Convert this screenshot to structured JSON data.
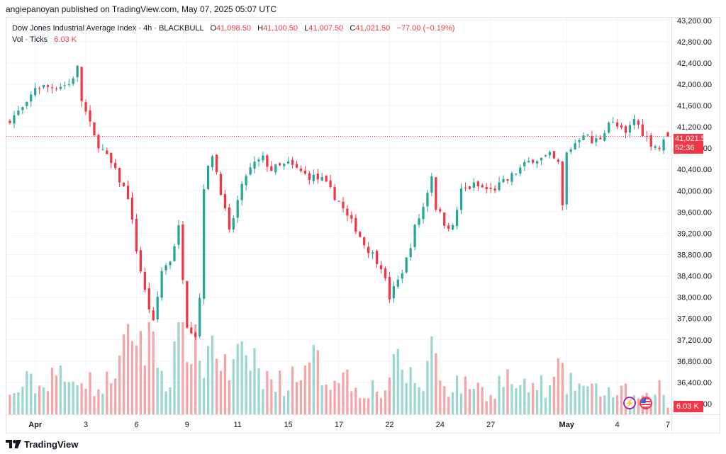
{
  "header": "angiepanoyan published on TradingView.com, May 07, 2025 05:07 UTC",
  "legend": {
    "symbol": "Dow Jones Industrial Average Index · 4h · BLACKBULL",
    "open_key": "O",
    "open": "41,098.50",
    "high_key": "H",
    "high": "41,100.50",
    "low_key": "L",
    "low": "41,007.50",
    "close_key": "C",
    "close": "41,021.50",
    "change": "−77.00 (−0.19%)",
    "vol_label": "Vol · Ticks",
    "vol_value": "6.03 K"
  },
  "price_tag": {
    "price": "41,021.50",
    "countdown": "52:36"
  },
  "volume_tag": "6.03 K",
  "footer": {
    "brand": "TradingView",
    "logo_icon": "tradingview-logo-icon"
  },
  "badges": [
    {
      "icon": "lightning-bolt-icon"
    },
    {
      "icon": "us-flag-icon"
    }
  ],
  "colors": {
    "up": "#26a69a",
    "down": "#f23645",
    "vol_up": "#9bd6cf",
    "vol_down": "#f5a5a8",
    "grid": "#f0f3fa"
  },
  "chart_data": {
    "type": "candlestick",
    "title": "Dow Jones Industrial Average Index · 4h · BLACKBULL",
    "ylim": [
      35800,
      43250
    ],
    "y_ticks": [
      "43,200.00",
      "42,800.00",
      "42,400.00",
      "42,000.00",
      "41,600.00",
      "41,200.00",
      "40,800.00",
      "40,400.00",
      "40,000.00",
      "39,600.00",
      "39,200.00",
      "38,800.00",
      "38,400.00",
      "38,000.00",
      "37,600.00",
      "37,200.00",
      "36,800.00",
      "36,400.00",
      "36,000.00"
    ],
    "y_tick_values": [
      43200,
      42800,
      42400,
      42000,
      41600,
      41200,
      40800,
      40400,
      40000,
      39600,
      39200,
      38800,
      38400,
      38000,
      37600,
      37200,
      36800,
      36400,
      36000
    ],
    "x_ticks": [
      {
        "label": "Apr",
        "bar": 6,
        "bold": true
      },
      {
        "label": "3",
        "bar": 18
      },
      {
        "label": "6",
        "bar": 30
      },
      {
        "label": "9",
        "bar": 42
      },
      {
        "label": "11",
        "bar": 54
      },
      {
        "label": "15",
        "bar": 66
      },
      {
        "label": "17",
        "bar": 78
      },
      {
        "label": "22",
        "bar": 90
      },
      {
        "label": "24",
        "bar": 102
      },
      {
        "label": "27",
        "bar": 114
      },
      {
        "label": "May",
        "bar": 132,
        "bold": true
      },
      {
        "label": "4",
        "bar": 144
      },
      {
        "label": "7",
        "bar": 156
      }
    ],
    "last_price": 41021.5,
    "close_path": [
      [
        0,
        41350
      ],
      [
        4,
        41600
      ],
      [
        6,
        41950
      ],
      [
        10,
        41950
      ],
      [
        14,
        42000
      ],
      [
        16,
        42300
      ],
      [
        17,
        41700
      ],
      [
        20,
        41000
      ],
      [
        24,
        40500
      ],
      [
        28,
        39900
      ],
      [
        30,
        38900
      ],
      [
        32,
        38100
      ],
      [
        34,
        37500
      ],
      [
        36,
        38500
      ],
      [
        38,
        38700
      ],
      [
        40,
        39300
      ],
      [
        42,
        37500
      ],
      [
        44,
        37300
      ],
      [
        45,
        38000
      ],
      [
        46,
        40100
      ],
      [
        48,
        40700
      ],
      [
        50,
        40000
      ],
      [
        52,
        39200
      ],
      [
        54,
        39800
      ],
      [
        56,
        40300
      ],
      [
        58,
        40500
      ],
      [
        60,
        40600
      ],
      [
        62,
        40400
      ],
      [
        66,
        40500
      ],
      [
        70,
        40300
      ],
      [
        74,
        40200
      ],
      [
        76,
        40000
      ],
      [
        78,
        39800
      ],
      [
        80,
        39500
      ],
      [
        82,
        39300
      ],
      [
        84,
        39000
      ],
      [
        86,
        38800
      ],
      [
        88,
        38600
      ],
      [
        90,
        38000
      ],
      [
        92,
        38300
      ],
      [
        94,
        38700
      ],
      [
        96,
        39300
      ],
      [
        98,
        39700
      ],
      [
        100,
        40300
      ],
      [
        101,
        39700
      ],
      [
        103,
        39400
      ],
      [
        105,
        39300
      ],
      [
        107,
        40000
      ],
      [
        110,
        40100
      ],
      [
        114,
        40000
      ],
      [
        118,
        40200
      ],
      [
        120,
        40350
      ],
      [
        124,
        40600
      ],
      [
        126,
        40600
      ],
      [
        128,
        40650
      ],
      [
        130,
        40500
      ],
      [
        131,
        39700
      ],
      [
        132,
        40700
      ],
      [
        134,
        40900
      ],
      [
        136,
        41100
      ],
      [
        138,
        40900
      ],
      [
        140,
        41000
      ],
      [
        142,
        41300
      ],
      [
        144,
        41200
      ],
      [
        146,
        41050
      ],
      [
        148,
        41350
      ],
      [
        150,
        41100
      ],
      [
        152,
        40900
      ],
      [
        154,
        40800
      ],
      [
        156,
        41021.5
      ]
    ],
    "volume_path": [
      [
        0,
        0.18
      ],
      [
        4,
        0.35
      ],
      [
        8,
        0.28
      ],
      [
        10,
        0.5
      ],
      [
        14,
        0.3
      ],
      [
        16,
        0.48
      ],
      [
        20,
        0.3
      ],
      [
        22,
        0.25
      ],
      [
        24,
        0.45
      ],
      [
        26,
        0.55
      ],
      [
        28,
        0.75
      ],
      [
        30,
        0.95
      ],
      [
        32,
        0.7
      ],
      [
        34,
        0.9
      ],
      [
        36,
        0.45
      ],
      [
        38,
        0.35
      ],
      [
        40,
        0.95
      ],
      [
        42,
        0.85
      ],
      [
        44,
        0.7
      ],
      [
        46,
        0.55
      ],
      [
        48,
        0.82
      ],
      [
        50,
        0.6
      ],
      [
        52,
        0.42
      ],
      [
        54,
        0.6
      ],
      [
        56,
        0.55
      ],
      [
        58,
        0.65
      ],
      [
        60,
        0.3
      ],
      [
        62,
        0.45
      ],
      [
        64,
        0.35
      ],
      [
        66,
        0.3
      ],
      [
        68,
        0.55
      ],
      [
        70,
        0.4
      ],
      [
        72,
        0.6
      ],
      [
        74,
        0.45
      ],
      [
        76,
        0.35
      ],
      [
        78,
        0.5
      ],
      [
        80,
        0.4
      ],
      [
        82,
        0.28
      ],
      [
        84,
        0.25
      ],
      [
        86,
        0.3
      ],
      [
        88,
        0.22
      ],
      [
        90,
        0.4
      ],
      [
        92,
        0.55
      ],
      [
        94,
        0.45
      ],
      [
        96,
        0.35
      ],
      [
        98,
        0.3
      ],
      [
        100,
        0.8
      ],
      [
        102,
        0.4
      ],
      [
        104,
        0.28
      ],
      [
        106,
        0.35
      ],
      [
        108,
        0.3
      ],
      [
        110,
        0.35
      ],
      [
        112,
        0.25
      ],
      [
        114,
        0.2
      ],
      [
        116,
        0.35
      ],
      [
        118,
        0.4
      ],
      [
        120,
        0.3
      ],
      [
        122,
        0.28
      ],
      [
        124,
        0.3
      ],
      [
        126,
        0.32
      ],
      [
        128,
        0.25
      ],
      [
        130,
        0.5
      ],
      [
        132,
        0.3
      ],
      [
        134,
        0.35
      ],
      [
        136,
        0.3
      ],
      [
        138,
        0.25
      ],
      [
        140,
        0.28
      ],
      [
        142,
        0.25
      ],
      [
        144,
        0.2
      ],
      [
        146,
        0.25
      ],
      [
        148,
        0.18
      ],
      [
        150,
        0.15
      ],
      [
        152,
        0.2
      ],
      [
        154,
        0.3
      ],
      [
        156,
        0.08
      ]
    ],
    "volume_max": "7.0 K"
  }
}
